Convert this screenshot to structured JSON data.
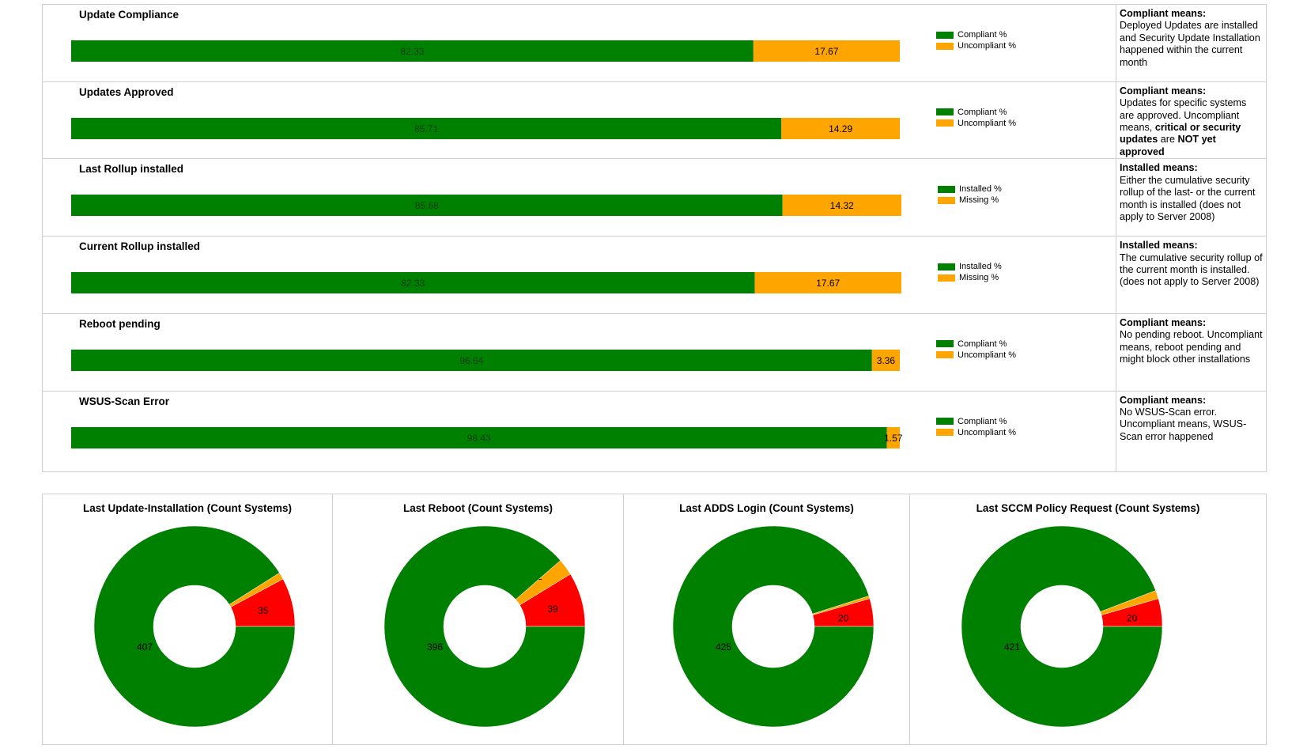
{
  "colors": {
    "green": "#008000",
    "orange": "#FFA500",
    "red": "#FF0000"
  },
  "chart_data": [
    {
      "type": "bar",
      "orientation": "horizontal-stacked",
      "title": "Update Compliance",
      "series": [
        {
          "name": "Compliant %",
          "values": [
            82.33
          ]
        },
        {
          "name": "Uncompliant %",
          "values": [
            17.67
          ]
        }
      ],
      "xlim": [
        0,
        100
      ]
    },
    {
      "type": "bar",
      "orientation": "horizontal-stacked",
      "title": "Updates Approved",
      "series": [
        {
          "name": "Compliant %",
          "values": [
            85.71
          ]
        },
        {
          "name": "Uncompliant %",
          "values": [
            14.29
          ]
        }
      ],
      "xlim": [
        0,
        100
      ]
    },
    {
      "type": "bar",
      "orientation": "horizontal-stacked",
      "title": "Last Rollup installed",
      "series": [
        {
          "name": "Installed %",
          "values": [
            85.68
          ]
        },
        {
          "name": "Missing %",
          "values": [
            14.32
          ]
        }
      ],
      "xlim": [
        0,
        100
      ]
    },
    {
      "type": "bar",
      "orientation": "horizontal-stacked",
      "title": "Current Rollup installed",
      "series": [
        {
          "name": "Installed %",
          "values": [
            82.33
          ]
        },
        {
          "name": "Missing %",
          "values": [
            17.67
          ]
        }
      ],
      "xlim": [
        0,
        100
      ]
    },
    {
      "type": "bar",
      "orientation": "horizontal-stacked",
      "title": "Reboot pending",
      "series": [
        {
          "name": "Compliant %",
          "values": [
            96.64
          ]
        },
        {
          "name": "Uncompliant %",
          "values": [
            3.36
          ]
        }
      ],
      "xlim": [
        0,
        100
      ]
    },
    {
      "type": "bar",
      "orientation": "horizontal-stacked",
      "title": "WSUS-Scan Error",
      "series": [
        {
          "name": "Compliant %",
          "values": [
            98.43
          ]
        },
        {
          "name": "Uncompliant %",
          "values": [
            1.57
          ]
        }
      ],
      "xlim": [
        0,
        100
      ]
    },
    {
      "type": "pie",
      "style": "donut",
      "title": "Last Update-Installation (Count Systems)",
      "values": [
        407,
        35,
        5
      ],
      "colors": [
        "#008000",
        "#FF0000",
        "#FFA500"
      ]
    },
    {
      "type": "pie",
      "style": "donut",
      "title": "Last Reboot (Count Systems)",
      "values": [
        396,
        39,
        12
      ],
      "colors": [
        "#008000",
        "#FF0000",
        "#FFA500"
      ]
    },
    {
      "type": "pie",
      "style": "donut",
      "title": "Last ADDS Login (Count Systems)",
      "values": [
        425,
        20,
        2
      ],
      "colors": [
        "#008000",
        "#FF0000",
        "#FFA500"
      ]
    },
    {
      "type": "pie",
      "style": "donut",
      "title": "Last SCCM Policy Request (Count Systems)",
      "values": [
        421,
        20,
        6
      ],
      "colors": [
        "#008000",
        "#FF0000",
        "#FFA500"
      ]
    }
  ],
  "descriptions": [
    {
      "heading": "Compliant means:",
      "parts": [
        {
          "t": "Deployed Updates are installed and Security Update Installation happened within the current month",
          "b": false
        }
      ]
    },
    {
      "heading": "Compliant means:",
      "parts": [
        {
          "t": "Updates for specific systems are approved. Uncompliant means, ",
          "b": false
        },
        {
          "t": "critical or security updates",
          "b": true
        },
        {
          "t": " are ",
          "b": false
        },
        {
          "t": "NOT yet approved",
          "b": true
        }
      ]
    },
    {
      "heading": "Installed means:",
      "parts": [
        {
          "t": "Either the cumulative security rollup of the last- or the current month is installed (does not apply to Server 2008)",
          "b": false
        }
      ]
    },
    {
      "heading": "Installed means:",
      "parts": [
        {
          "t": "The cumulative security rollup of  the current month is installed.\n(does not apply to Server 2008)",
          "b": false
        }
      ]
    },
    {
      "heading": "Compliant means:",
      "parts": [
        {
          "t": "No pending reboot. Uncompliant means, reboot pending and might block other installations",
          "b": false
        }
      ]
    },
    {
      "heading": "Compliant means:",
      "parts": [
        {
          "t": "No WSUS-Scan error. Uncompliant means, WSUS-Scan error happened",
          "b": false
        }
      ]
    }
  ]
}
